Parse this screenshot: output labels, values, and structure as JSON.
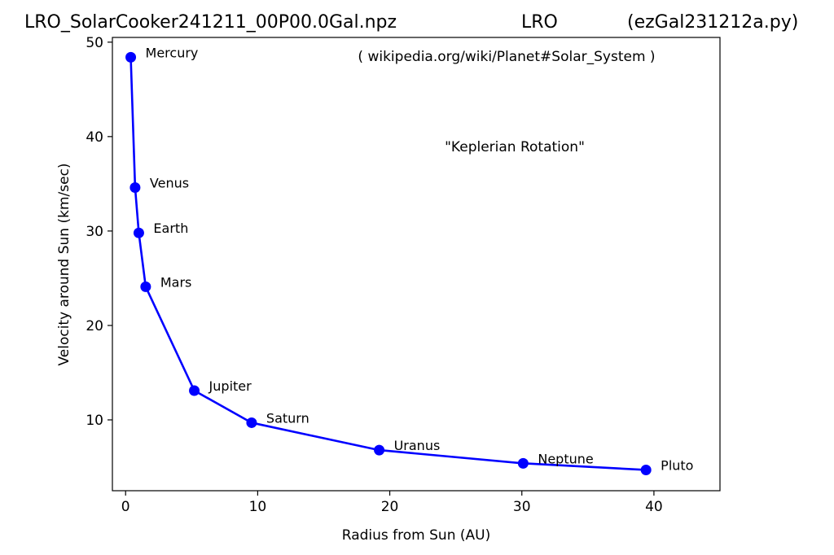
{
  "chart_data": {
    "type": "line",
    "title_parts": [
      "LRO_SolarCooker241211_00P00.0Gal.npz",
      "LRO",
      "(ezGal231212a.py)"
    ],
    "xlabel": "Radius from Sun (AU)",
    "ylabel": "Velocity around Sun (km/sec)",
    "xlim": [
      -1,
      45
    ],
    "ylim": [
      2.5,
      50.5
    ],
    "xticks": [
      0,
      10,
      20,
      30,
      40
    ],
    "yticks": [
      10,
      20,
      30,
      40,
      50
    ],
    "grid": false,
    "annotations": [
      "( wikipedia.org/wiki/Planet#Solar_System )",
      "\"Keplerian Rotation\""
    ],
    "series": [
      {
        "color": "#0000ff",
        "marker": "circle",
        "points": [
          {
            "label": "Mercury",
            "x": 0.39,
            "y": 48.4
          },
          {
            "label": "Venus",
            "x": 0.72,
            "y": 34.6
          },
          {
            "label": "Earth",
            "x": 1.0,
            "y": 29.8
          },
          {
            "label": "Mars",
            "x": 1.52,
            "y": 24.1
          },
          {
            "label": "Jupiter",
            "x": 5.2,
            "y": 13.1
          },
          {
            "label": "Saturn",
            "x": 9.54,
            "y": 9.7
          },
          {
            "label": "Uranus",
            "x": 19.2,
            "y": 6.8
          },
          {
            "label": "Neptune",
            "x": 30.1,
            "y": 5.4
          },
          {
            "label": "Pluto",
            "x": 39.4,
            "y": 4.7
          }
        ]
      }
    ]
  }
}
